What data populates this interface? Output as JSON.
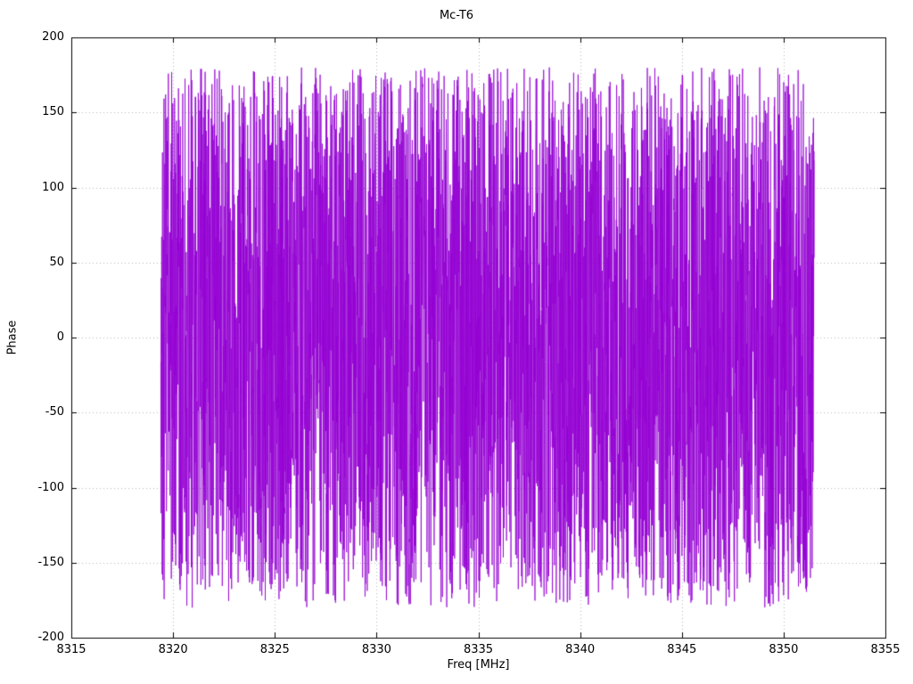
{
  "chart_data": {
    "type": "line",
    "title": "Mc-T6",
    "xlabel": "Freq [MHz]",
    "ylabel": "Phase",
    "xlim": [
      8315,
      8355
    ],
    "ylim": [
      -200,
      200
    ],
    "x_ticks": [
      "8315",
      "8320",
      "8325",
      "8330",
      "8335",
      "8340",
      "8345",
      "8350",
      "8355"
    ],
    "x_tick_values": [
      8315,
      8320,
      8325,
      8330,
      8335,
      8340,
      8345,
      8350,
      8355
    ],
    "y_ticks": [
      "-200",
      "-150",
      "-100",
      "-50",
      "0",
      "50",
      "100",
      "150",
      "200"
    ],
    "y_tick_values": [
      -200,
      -150,
      -100,
      -50,
      0,
      50,
      100,
      150,
      200
    ],
    "grid": "dotted",
    "legend_position": "none",
    "colors": {
      "series": "#9400D3",
      "grid": "#b8b8b8",
      "border": "#000000",
      "background": "#ffffff"
    },
    "series": [
      {
        "name": "phase",
        "description": "Dense wrapped interferometric phase noise, values approximately uniformly distributed between -180 and +180 degrees across the observed band",
        "x_start": 8319.4,
        "x_end": 8351.5,
        "n_points": 4000,
        "y_min": -180,
        "y_max": 180,
        "distribution": "uniform",
        "seed": 42
      }
    ]
  }
}
